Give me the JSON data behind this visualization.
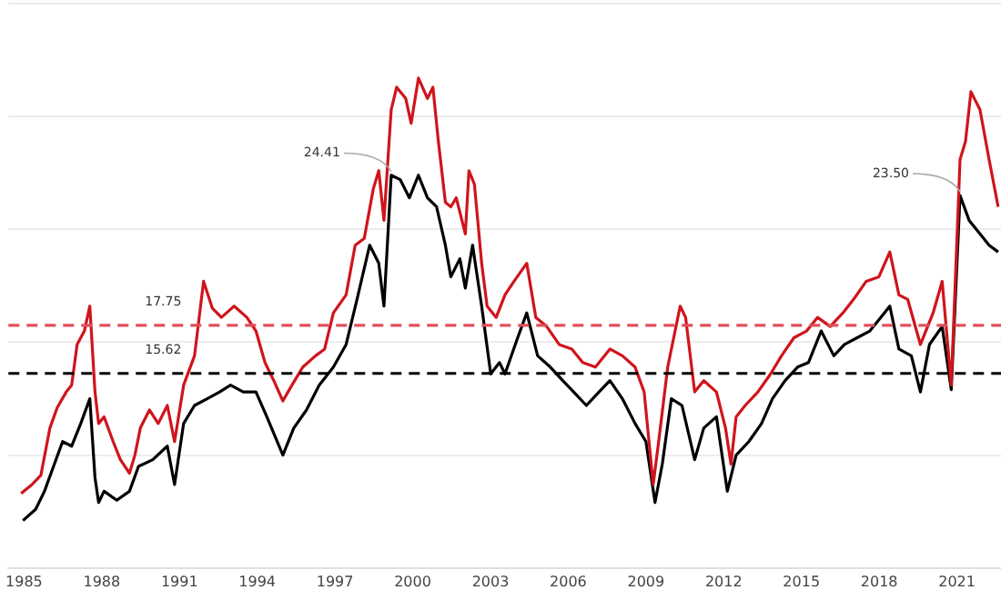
{
  "chart_data": {
    "type": "line",
    "series": [
      {
        "color": "#d0141c",
        "x": [
          1984.89,
          1985.31,
          1985.65,
          1986.0,
          1986.28,
          1986.63,
          1986.84,
          1987.05,
          1987.33,
          1987.54,
          1987.74,
          1987.88,
          1988.09,
          1988.44,
          1988.72,
          1989.07,
          1989.28,
          1989.49,
          1989.84,
          1990.18,
          1990.53,
          1990.81,
          1991.16,
          1991.58,
          1991.93,
          1992.27,
          1992.62,
          1993.11,
          1993.6,
          1993.95,
          1994.3,
          1994.64,
          1994.99,
          1995.34,
          1995.76,
          1996.25,
          1996.6,
          1996.94,
          1997.43,
          1997.78,
          1998.13,
          1998.48,
          1998.69,
          1998.89,
          1999.17,
          1999.38,
          1999.73,
          1999.94,
          2000.22,
          2000.57,
          2000.78,
          2000.99,
          2001.26,
          2001.47,
          2001.68,
          2002.03,
          2002.17,
          2002.38,
          2002.66,
          2002.87,
          2003.22,
          2003.56,
          2003.91,
          2004.4,
          2004.75,
          2005.17,
          2005.65,
          2006.14,
          2006.56,
          2007.05,
          2007.61,
          2008.09,
          2008.58,
          2008.93,
          2009.28,
          2009.49,
          2009.84,
          2010.32,
          2010.53,
          2010.88,
          2011.23,
          2011.72,
          2012.07,
          2012.28,
          2012.48,
          2012.83,
          2013.32,
          2013.81,
          2014.23,
          2014.71,
          2015.2,
          2015.62,
          2016.11,
          2016.6,
          2017.01,
          2017.5,
          2017.99,
          2018.41,
          2018.76,
          2019.1,
          2019.59,
          2020.08,
          2020.43,
          2020.78,
          2021.12,
          2021.33,
          2021.54,
          2021.89,
          2022.24,
          2022.59
        ],
        "values": [
          10.3,
          10.7,
          11.1,
          13.2,
          14.1,
          14.8,
          15.1,
          16.9,
          17.5,
          18.6,
          14.8,
          13.4,
          13.7,
          12.6,
          11.8,
          11.2,
          12.0,
          13.2,
          14.0,
          13.4,
          14.2,
          12.6,
          15.1,
          16.4,
          19.7,
          18.5,
          18.1,
          18.6,
          18.1,
          17.5,
          16.1,
          15.3,
          14.4,
          15.1,
          15.9,
          16.4,
          16.7,
          18.3,
          19.1,
          21.3,
          21.6,
          23.8,
          24.6,
          22.4,
          27.3,
          28.3,
          27.8,
          26.7,
          28.7,
          27.8,
          28.3,
          25.9,
          23.2,
          23.0,
          23.4,
          21.8,
          24.6,
          24.0,
          20.5,
          18.6,
          18.1,
          19.1,
          19.7,
          20.5,
          18.1,
          17.7,
          16.9,
          16.7,
          16.1,
          15.9,
          16.7,
          16.4,
          15.9,
          14.8,
          10.7,
          12.6,
          15.9,
          18.6,
          18.1,
          14.8,
          15.3,
          14.8,
          13.2,
          11.6,
          13.7,
          14.2,
          14.8,
          15.6,
          16.4,
          17.2,
          17.5,
          18.1,
          17.7,
          18.3,
          18.9,
          19.7,
          19.9,
          21.0,
          19.1,
          18.9,
          16.9,
          18.3,
          19.7,
          15.1,
          25.1,
          25.9,
          28.1,
          27.3,
          25.1,
          23.0
        ]
      },
      {
        "color": "#000000",
        "x": [
          1984.96,
          1985.45,
          1985.79,
          1986.14,
          1986.49,
          1986.84,
          1987.19,
          1987.54,
          1987.74,
          1987.88,
          1988.09,
          1988.58,
          1989.07,
          1989.42,
          1989.97,
          1990.53,
          1990.81,
          1991.16,
          1991.58,
          1992.07,
          1992.55,
          1992.97,
          1993.46,
          1993.95,
          1994.37,
          1994.99,
          1995.41,
          1995.9,
          1996.39,
          1996.94,
          1997.43,
          1997.85,
          1998.34,
          1998.69,
          1998.89,
          1999.17,
          1999.52,
          1999.87,
          2000.22,
          2000.57,
          2000.92,
          2001.26,
          2001.47,
          2001.82,
          2002.03,
          2002.31,
          2002.66,
          2003.01,
          2003.35,
          2003.56,
          2004.05,
          2004.4,
          2004.82,
          2005.31,
          2005.79,
          2006.21,
          2006.7,
          2007.19,
          2007.61,
          2008.09,
          2008.58,
          2009.0,
          2009.35,
          2009.63,
          2009.98,
          2010.39,
          2010.88,
          2011.23,
          2011.72,
          2012.14,
          2012.48,
          2012.97,
          2013.46,
          2013.88,
          2014.37,
          2014.85,
          2015.27,
          2015.76,
          2016.25,
          2016.66,
          2017.15,
          2017.64,
          2018.06,
          2018.41,
          2018.76,
          2019.24,
          2019.59,
          2019.94,
          2020.43,
          2020.78,
          2021.12,
          2021.47,
          2021.89,
          2022.24,
          2022.59
        ],
        "values": [
          9.1,
          9.6,
          10.4,
          11.5,
          12.6,
          12.4,
          13.4,
          14.5,
          11.0,
          9.9,
          10.4,
          10.0,
          10.4,
          11.5,
          11.8,
          12.4,
          10.7,
          13.4,
          14.2,
          14.5,
          14.8,
          15.1,
          14.8,
          14.8,
          13.7,
          12.0,
          13.2,
          14.0,
          15.1,
          15.9,
          16.9,
          18.9,
          21.3,
          20.5,
          18.6,
          24.4,
          24.2,
          23.4,
          24.4,
          23.4,
          23.0,
          21.3,
          19.9,
          20.7,
          19.4,
          21.3,
          18.6,
          15.6,
          16.1,
          15.6,
          17.2,
          18.3,
          16.4,
          15.9,
          15.3,
          14.8,
          14.2,
          14.8,
          15.3,
          14.5,
          13.4,
          12.6,
          9.9,
          11.6,
          14.5,
          14.2,
          11.8,
          13.2,
          13.7,
          10.4,
          12.0,
          12.6,
          13.4,
          14.5,
          15.3,
          15.9,
          16.1,
          17.5,
          16.4,
          16.9,
          17.2,
          17.5,
          18.1,
          18.6,
          16.7,
          16.4,
          14.8,
          16.9,
          17.7,
          14.9,
          23.5,
          22.4,
          21.8,
          21.3,
          21.0
        ]
      }
    ],
    "xlim": [
      1984.4,
      2022.7
    ],
    "xticks": [
      1985,
      1988,
      1991,
      1994,
      1997,
      2000,
      2003,
      2006,
      2009,
      2012,
      2015,
      2018,
      2021
    ],
    "ylim": [
      7,
      32
    ],
    "yticks": [
      {
        "value": 7,
        "label": null
      },
      {
        "value": 12,
        "label": null
      },
      {
        "value": 17,
        "label": null
      },
      {
        "value": 22,
        "label": null
      },
      {
        "value": 27,
        "label": null
      },
      {
        "value": 32,
        "label": null
      }
    ],
    "ref_lines": [
      {
        "axis": "y",
        "value": 17.75,
        "label": "17.75",
        "color": "#e0505a",
        "line_style": "dashed"
      },
      {
        "axis": "y",
        "value": 15.62,
        "label": "15.62",
        "color": "#000000",
        "line_style": "dashed"
      }
    ],
    "annotations": [
      {
        "text": "24.41",
        "x": 1999.17,
        "y": 24.41
      },
      {
        "text": "23.50",
        "x": 2021.12,
        "y": 23.5
      }
    ],
    "grid": "y",
    "tick_labels": "x",
    "legend": false,
    "marker": "none",
    "line_style": "solid"
  }
}
